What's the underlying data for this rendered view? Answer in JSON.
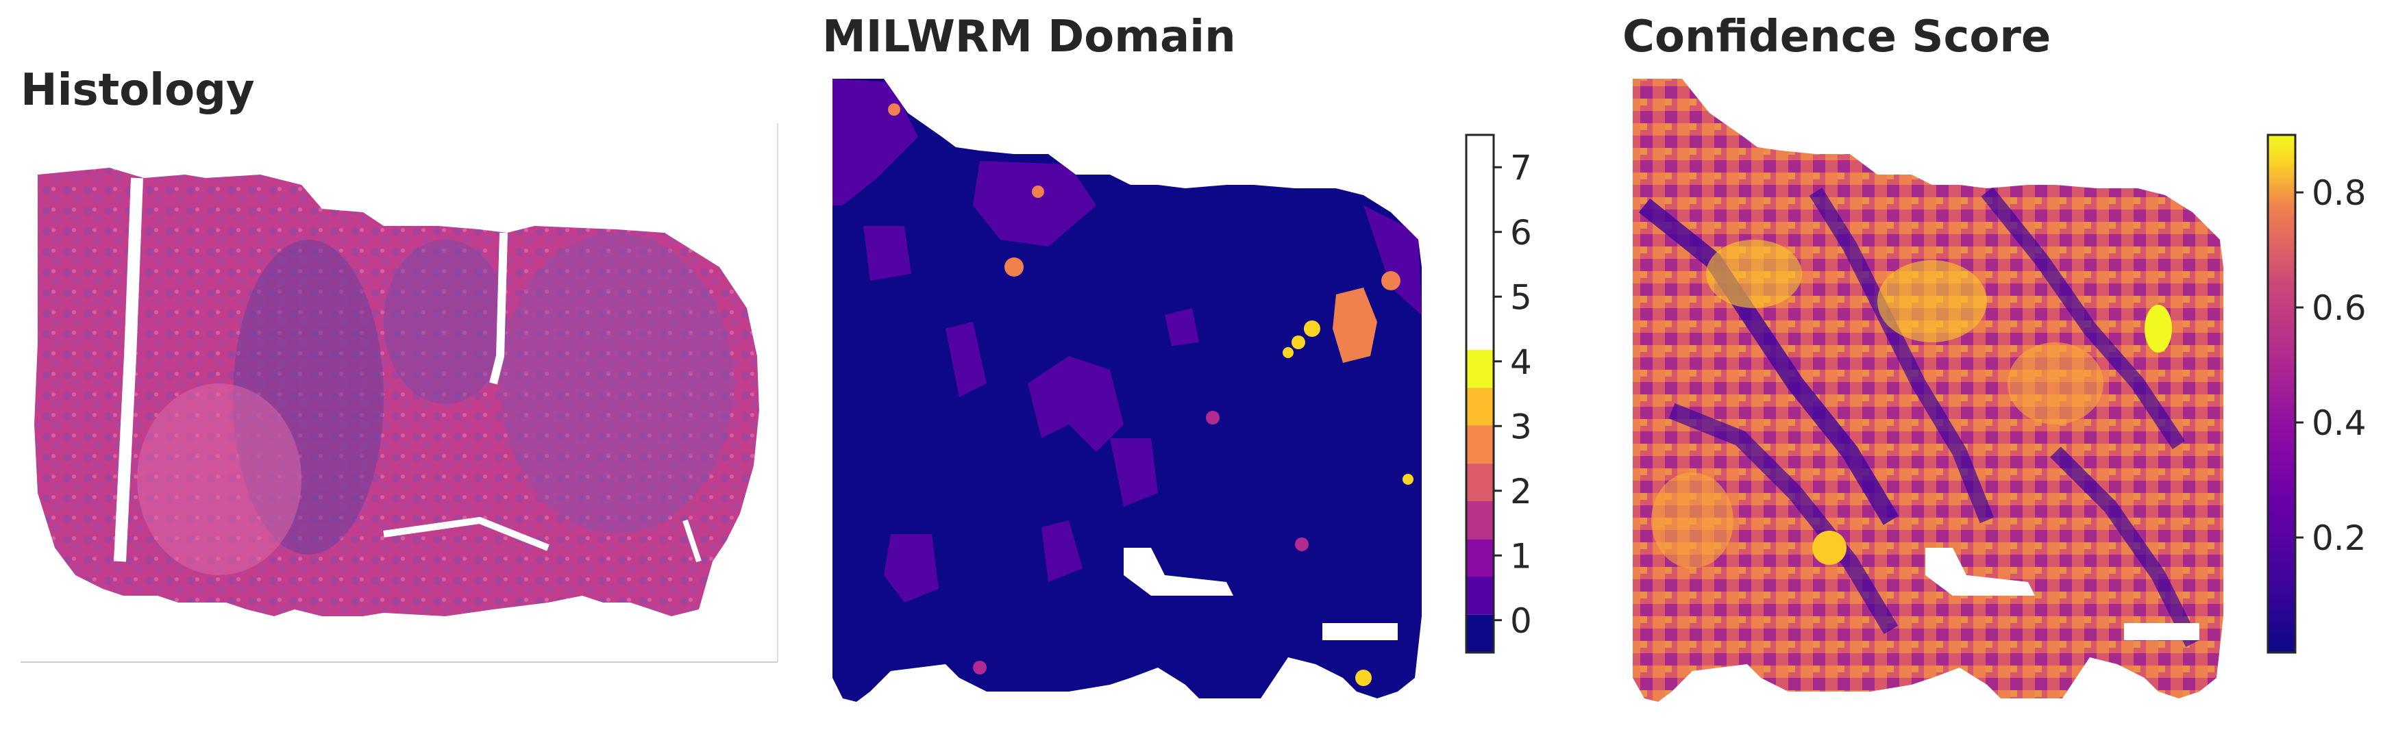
{
  "colors": {
    "tissue_pink": "#d4408a",
    "tissue_purple": "#7a4aa8",
    "tissue_light": "#e98cc0",
    "background": "#ffffff"
  },
  "panels": [
    {
      "title": "Histology"
    },
    {
      "title": "MILWRM Domain"
    },
    {
      "title": "Confidence Score"
    }
  ],
  "chart_data": [
    {
      "type": "image",
      "title": "Histology"
    },
    {
      "type": "heatmap",
      "title": "MILWRM Domain",
      "colormap": "plasma",
      "colorbar": {
        "type": "discrete",
        "ticks": [
          0,
          1,
          2,
          3,
          4,
          5,
          6,
          7
        ],
        "tick_labels": [
          "0",
          "1",
          "2",
          "3",
          "4",
          "5",
          "6",
          "7"
        ],
        "range": [
          -0.5,
          7.5
        ],
        "placement": "right"
      },
      "dominant_value": 0,
      "grid": false
    },
    {
      "type": "heatmap",
      "title": "Confidence Score",
      "colormap": "plasma",
      "colorbar": {
        "type": "continuous",
        "ticks": [
          0.2,
          0.4,
          0.6,
          0.8
        ],
        "tick_labels": [
          "0.2",
          "0.4",
          "0.6",
          "0.8"
        ],
        "range": [
          0.0,
          0.9
        ],
        "placement": "right"
      },
      "grid": false
    }
  ]
}
